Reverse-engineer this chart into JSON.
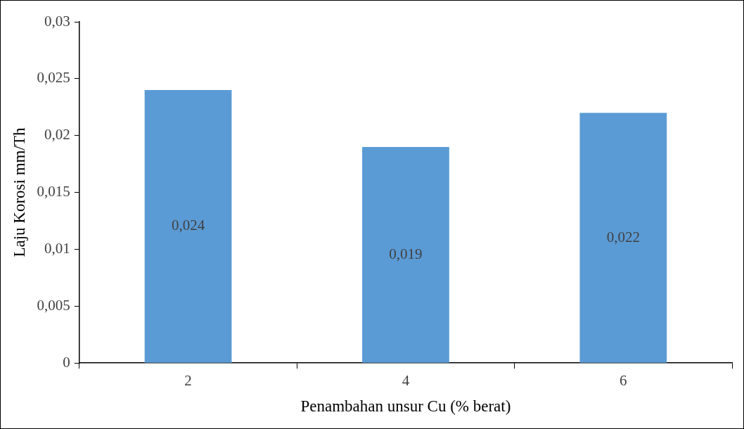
{
  "chart_data": {
    "type": "bar",
    "xlabel": "Penambahan unsur Cu (% berat)",
    "ylabel": "Laju Korosi mm/Th",
    "categories": [
      "2",
      "4",
      "6"
    ],
    "values": [
      0.024,
      0.019,
      0.022
    ],
    "value_labels": [
      "0,024",
      "0,019",
      "0,022"
    ],
    "color": "#5b9bd5",
    "ylim": [
      0,
      0.03
    ],
    "yticks": [
      {
        "value": 0,
        "label": "0"
      },
      {
        "value": 0.005,
        "label": "0,005"
      },
      {
        "value": 0.01,
        "label": "0,01"
      },
      {
        "value": 0.015,
        "label": "0,015"
      },
      {
        "value": 0.02,
        "label": "0,02"
      },
      {
        "value": 0.025,
        "label": "0,025"
      },
      {
        "value": 0.03,
        "label": "0,03"
      }
    ],
    "grid": false,
    "legend": false
  }
}
